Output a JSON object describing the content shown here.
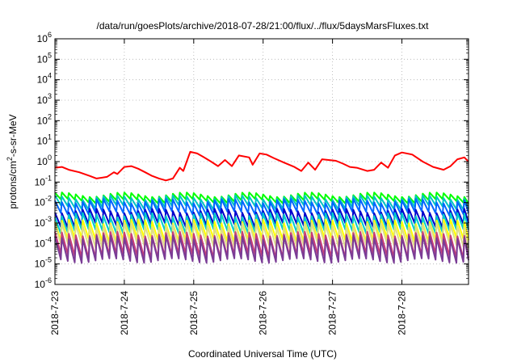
{
  "chart_data": {
    "type": "line",
    "title": "/data/run/goesPlots/archive/2018-07-28/21:00/flux/../flux/5daysMarsFluxes.txt",
    "xlabel": "Coordinated Universal Time (UTC)",
    "ylabel": {
      "prefix": "protons/cm",
      "sup": "2",
      "suffix": "-s-sr-MeV"
    },
    "yscale": "log",
    "ylim": [
      1e-06,
      1000000.0
    ],
    "yticks": [
      {
        "exp": -6,
        "base": "10",
        "sup": "-6"
      },
      {
        "exp": -5,
        "base": "10",
        "sup": "-5"
      },
      {
        "exp": -4,
        "base": "10",
        "sup": "-4"
      },
      {
        "exp": -3,
        "base": "10",
        "sup": "-3"
      },
      {
        "exp": -2,
        "base": "10",
        "sup": "-2"
      },
      {
        "exp": -1,
        "base": "10",
        "sup": "-1"
      },
      {
        "exp": 0,
        "base": "10",
        "sup": "0"
      },
      {
        "exp": 1,
        "base": "10",
        "sup": "1"
      },
      {
        "exp": 2,
        "base": "10",
        "sup": "2"
      },
      {
        "exp": 3,
        "base": "10",
        "sup": "3"
      },
      {
        "exp": 4,
        "base": "10",
        "sup": "4"
      },
      {
        "exp": 5,
        "base": "10",
        "sup": "5"
      },
      {
        "exp": 6,
        "base": "10",
        "sup": "6"
      }
    ],
    "xlim": [
      0,
      5.96
    ],
    "xticks": [
      {
        "day": 0,
        "label": "2018-7-23"
      },
      {
        "day": 1,
        "label": "2018-7-24"
      },
      {
        "day": 2,
        "label": "2018-7-25"
      },
      {
        "day": 3,
        "label": "2018-7-26"
      },
      {
        "day": 4,
        "label": "2018-7-27"
      },
      {
        "day": 5,
        "label": "2018-7-28"
      }
    ],
    "grid": true,
    "series": [
      {
        "color": "#ff0000",
        "values": [
          [
            0.0,
            0.5
          ],
          [
            0.1,
            0.55
          ],
          [
            0.2,
            0.4
          ],
          [
            0.35,
            0.3
          ],
          [
            0.5,
            0.2
          ],
          [
            0.6,
            0.15
          ],
          [
            0.75,
            0.18
          ],
          [
            0.85,
            0.3
          ],
          [
            0.9,
            0.25
          ],
          [
            1.0,
            0.55
          ],
          [
            1.1,
            0.6
          ],
          [
            1.2,
            0.45
          ],
          [
            1.3,
            0.3
          ],
          [
            1.4,
            0.2
          ],
          [
            1.5,
            0.15
          ],
          [
            1.6,
            0.12
          ],
          [
            1.7,
            0.15
          ],
          [
            1.8,
            0.5
          ],
          [
            1.85,
            0.35
          ],
          [
            1.95,
            3.0
          ],
          [
            2.05,
            2.5
          ],
          [
            2.15,
            1.6
          ],
          [
            2.25,
            1.0
          ],
          [
            2.35,
            0.6
          ],
          [
            2.45,
            1.2
          ],
          [
            2.55,
            0.6
          ],
          [
            2.65,
            2.0
          ],
          [
            2.8,
            1.6
          ],
          [
            2.85,
            0.7
          ],
          [
            2.95,
            2.5
          ],
          [
            3.05,
            2.2
          ],
          [
            3.15,
            1.5
          ],
          [
            3.3,
            0.9
          ],
          [
            3.45,
            0.55
          ],
          [
            3.55,
            0.35
          ],
          [
            3.65,
            0.9
          ],
          [
            3.75,
            0.4
          ],
          [
            3.85,
            1.3
          ],
          [
            4.05,
            1.1
          ],
          [
            4.15,
            0.8
          ],
          [
            4.25,
            0.55
          ],
          [
            4.35,
            0.5
          ],
          [
            4.5,
            0.35
          ],
          [
            4.6,
            0.4
          ],
          [
            4.7,
            0.9
          ],
          [
            4.8,
            0.5
          ],
          [
            4.9,
            2.0
          ],
          [
            5.0,
            2.8
          ],
          [
            5.15,
            2.2
          ],
          [
            5.3,
            1.0
          ],
          [
            5.45,
            0.55
          ],
          [
            5.6,
            0.4
          ],
          [
            5.7,
            0.6
          ],
          [
            5.8,
            1.3
          ],
          [
            5.9,
            1.6
          ],
          [
            5.96,
            1.0
          ]
        ]
      },
      {
        "color": "#00ff00",
        "base": 0.025,
        "min": 0.012
      },
      {
        "color": "#00c4c4",
        "base": 0.018,
        "min": 0.006
      },
      {
        "color": "#0066ff",
        "base": 0.012,
        "min": 0.003
      },
      {
        "color": "#0000cc",
        "base": 0.004,
        "min": 0.0008
      },
      {
        "color": "#00cccc",
        "base": 0.0025,
        "min": 0.0004
      },
      {
        "color": "#ffff00",
        "base": 0.0012,
        "min": 0.00015
      },
      {
        "color": "#dddd88",
        "base": 0.0008,
        "min": 8e-05
      },
      {
        "color": "#c83c78",
        "base": 0.0003,
        "min": 2.5e-05
      },
      {
        "color": "#7a3c96",
        "base": 0.0002,
        "min": 1.5e-05
      }
    ]
  }
}
